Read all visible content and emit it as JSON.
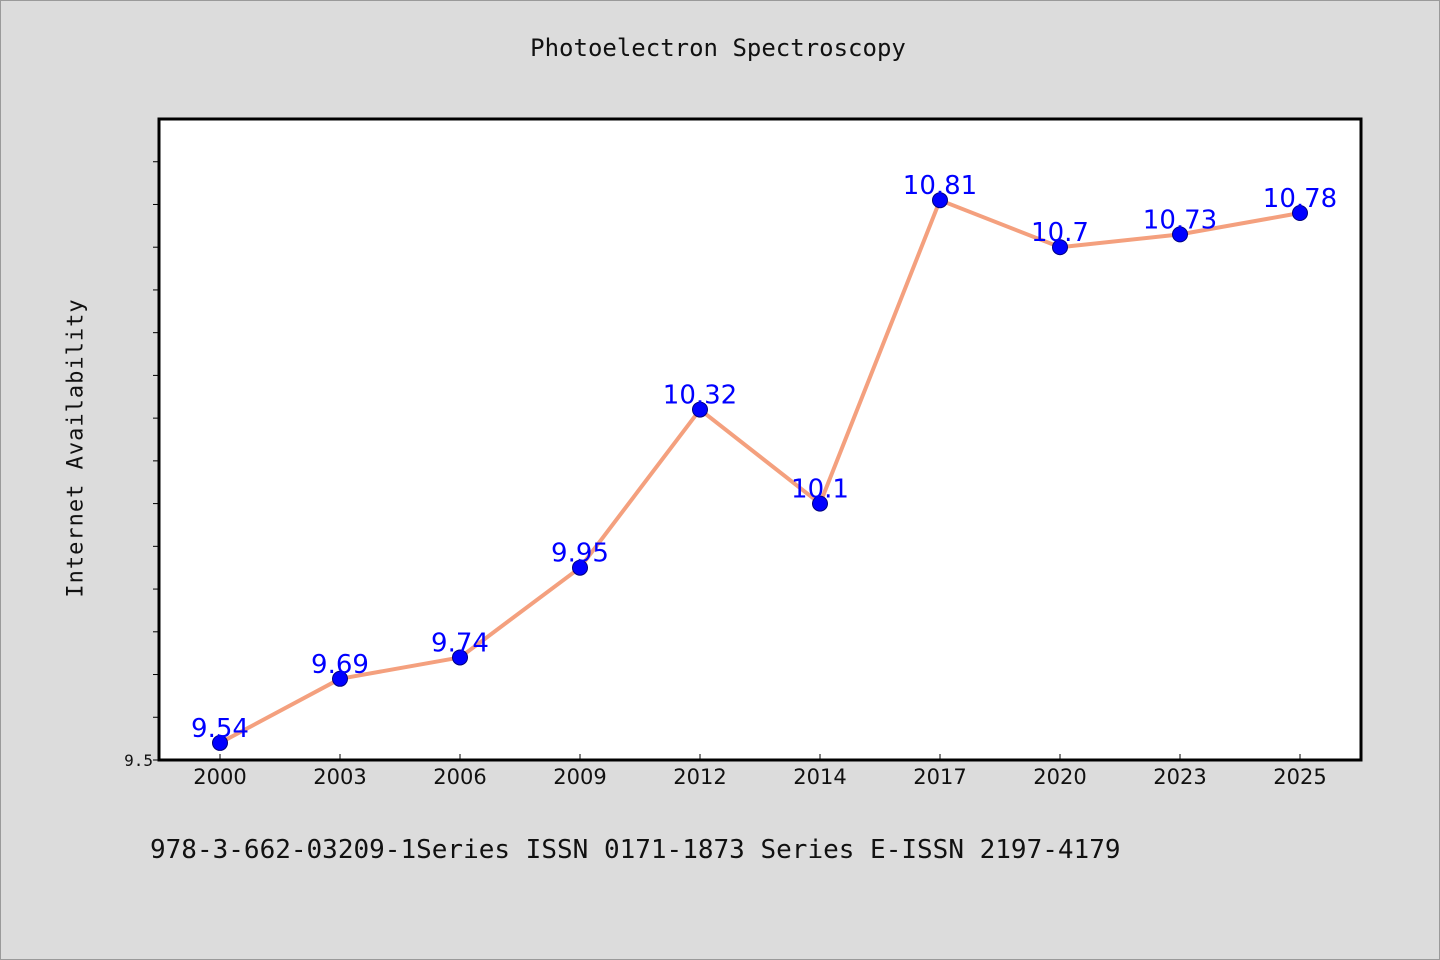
{
  "chart_data": {
    "type": "line",
    "title": "Photoelectron Spectroscopy",
    "xlabel": "",
    "ylabel": "Internet Availability",
    "categories": [
      "2000",
      "2003",
      "2006",
      "2009",
      "2012",
      "2014",
      "2017",
      "2020",
      "2023",
      "2025"
    ],
    "series": [
      {
        "values": [
          9.54,
          9.69,
          9.74,
          9.95,
          10.32,
          10.1,
          10.81,
          10.7,
          10.73,
          10.78
        ],
        "data_labels": [
          "9.54",
          "9.69",
          "9.74",
          "9.95",
          "10.32",
          "10.1",
          "10.81",
          "10.7",
          "10.73",
          "10.78"
        ]
      }
    ],
    "ylim": [
      9.5,
      11.0
    ],
    "y_tick_labels": [
      "9.5"
    ],
    "grid": false,
    "legend": false,
    "colors": {
      "line": "#f4a07e",
      "marker": "#0000ff",
      "marker_edge": "#000080",
      "data_label": "#0000ff",
      "plot_background": "#ffffff",
      "page_background": "#dcdcdc"
    }
  },
  "footer": {
    "text": "978-3-662-03209-1Series ISSN 0171-1873 Series E-ISSN 2197-4179"
  }
}
